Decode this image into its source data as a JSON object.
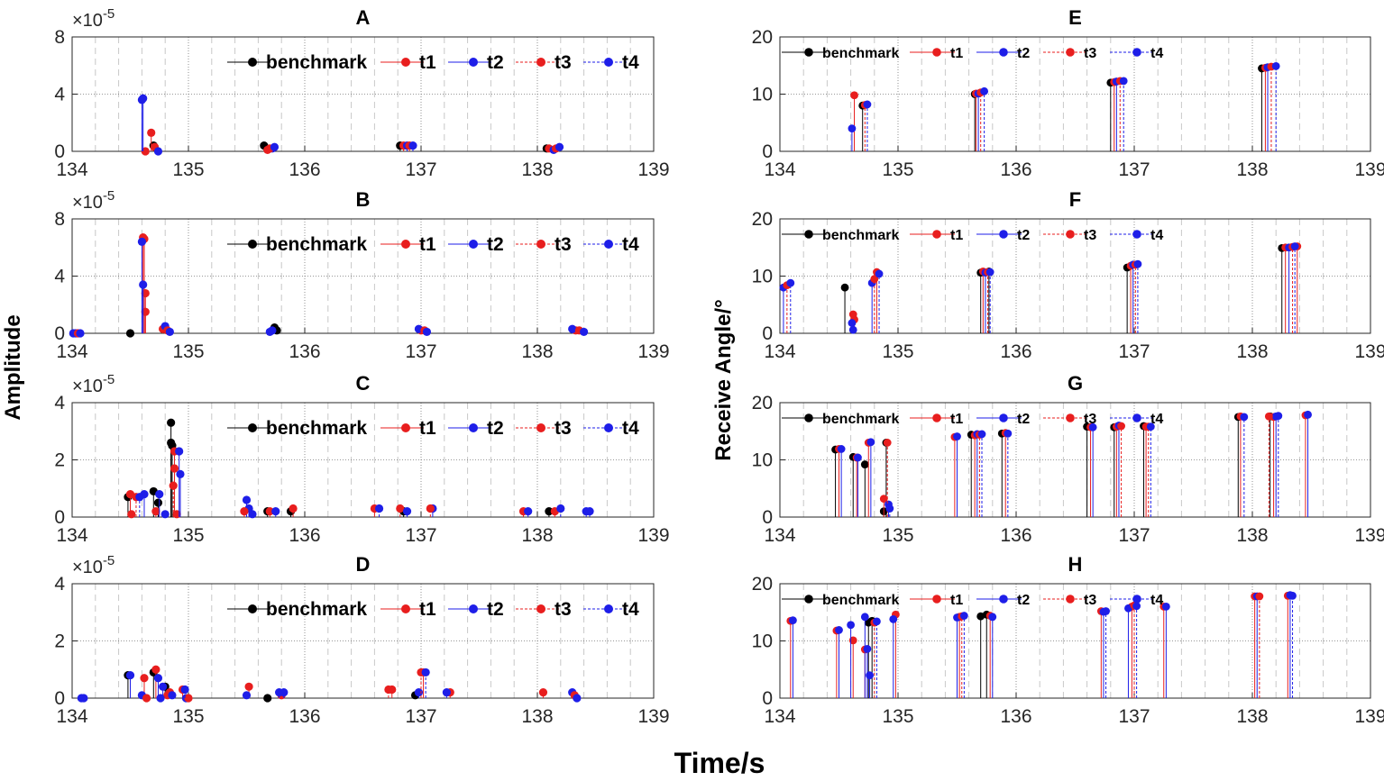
{
  "figure": {
    "ylabel_left": "Amplitude",
    "ylabel_right": "Receive Angle/°",
    "xlabel": "Time/s",
    "exponent_label": "×10",
    "exponent_power": "-5",
    "colors": {
      "benchmark": "#000000",
      "t1": "#e81e1e",
      "t2": "#1e1ee8",
      "t3": "#e81e1e",
      "t4": "#1e1ee8"
    }
  },
  "legend": [
    "benchmark",
    "t1",
    "t2",
    "t3",
    "t4"
  ],
  "chart_data": [
    {
      "id": "A",
      "title": "A",
      "type": "stem",
      "xlim": [
        134,
        139
      ],
      "ylim": [
        0,
        8
      ],
      "yticks": [
        0,
        4,
        8
      ],
      "scale_exponent": -5,
      "xticks": [
        134,
        135,
        136,
        137,
        138,
        139
      ],
      "series": [
        {
          "name": "benchmark",
          "x": [
            135.65,
            136.82,
            138.08,
            134.7
          ],
          "y": [
            0.4,
            0.4,
            0.2,
            0.4
          ]
        },
        {
          "name": "t1",
          "x": [
            134.63,
            134.68,
            134.71,
            135.68,
            136.85,
            138.1
          ],
          "y": [
            0.0,
            1.3,
            0.3,
            0.1,
            0.4,
            0.2
          ]
        },
        {
          "name": "t2",
          "x": [
            134.6,
            134.61,
            134.74,
            135.72,
            136.88,
            138.14
          ],
          "y": [
            3.6,
            3.7,
            0.0,
            0.2,
            0.4,
            0.1
          ]
        },
        {
          "name": "t3",
          "x": [
            135.7,
            136.9,
            138.16
          ],
          "y": [
            0.2,
            0.4,
            0.2
          ]
        },
        {
          "name": "t4",
          "x": [
            135.74,
            136.93,
            138.19
          ],
          "y": [
            0.3,
            0.4,
            0.3
          ]
        }
      ]
    },
    {
      "id": "B",
      "title": "B",
      "type": "stem",
      "xlim": [
        134,
        139
      ],
      "ylim": [
        0,
        8
      ],
      "yticks": [
        0,
        4,
        8
      ],
      "scale_exponent": -5,
      "xticks": [
        134,
        135,
        136,
        137,
        138,
        139
      ],
      "series": [
        {
          "name": "benchmark",
          "x": [
            134.5,
            135.74,
            135.76
          ],
          "y": [
            0.0,
            0.4,
            0.2
          ]
        },
        {
          "name": "t1",
          "x": [
            134.61,
            134.62,
            134.63,
            134.63,
            134.78,
            137.0,
            138.33
          ],
          "y": [
            6.7,
            6.6,
            2.8,
            1.5,
            0.3,
            0.2,
            0.2
          ]
        },
        {
          "name": "t2",
          "x": [
            134.01,
            134.03,
            134.6,
            134.61,
            134.8,
            135.72,
            136.98,
            138.3
          ],
          "y": [
            0.0,
            0.0,
            6.4,
            3.4,
            0.5,
            0.2,
            0.3,
            0.3
          ]
        },
        {
          "name": "t3",
          "x": [
            134.05,
            134.82,
            137.03,
            138.36
          ],
          "y": [
            0.0,
            0.2,
            0.2,
            0.2
          ]
        },
        {
          "name": "t4",
          "x": [
            134.07,
            134.84,
            135.7,
            137.05,
            138.4
          ],
          "y": [
            0.0,
            0.1,
            0.1,
            0.1,
            0.1
          ]
        }
      ]
    },
    {
      "id": "C",
      "title": "C",
      "type": "stem",
      "xlim": [
        134,
        139
      ],
      "ylim": [
        0,
        4
      ],
      "yticks": [
        0,
        2,
        4
      ],
      "scale_exponent": -5,
      "xticks": [
        134,
        135,
        136,
        137,
        138,
        139
      ],
      "series": [
        {
          "name": "benchmark",
          "x": [
            134.48,
            134.7,
            134.74,
            134.85,
            134.85,
            134.86,
            135.68,
            135.88,
            136.85,
            138.1
          ],
          "y": [
            0.7,
            0.9,
            0.5,
            3.3,
            2.6,
            2.5,
            0.2,
            0.2,
            0.2,
            0.2
          ]
        },
        {
          "name": "t1",
          "x": [
            134.5,
            134.51,
            134.72,
            134.88,
            134.88,
            134.9,
            135.7,
            135.9,
            136.6,
            138.15
          ],
          "y": [
            0.8,
            0.1,
            0.2,
            2.3,
            1.7,
            0.1,
            0.2,
            0.3,
            0.3,
            0.2
          ]
        },
        {
          "name": "t2",
          "x": [
            134.62,
            134.75,
            134.92,
            134.93,
            135.5,
            135.52,
            135.75,
            137.1,
            138.42
          ],
          "y": [
            0.8,
            0.8,
            2.3,
            1.5,
            0.6,
            0.3,
            0.2,
            0.3,
            0.2
          ]
        },
        {
          "name": "t3",
          "x": [
            134.55,
            134.87,
            135.48,
            136.82,
            137.08,
            137.88
          ],
          "y": [
            0.7,
            1.1,
            0.2,
            0.3,
            0.3,
            0.2
          ]
        },
        {
          "name": "t4",
          "x": [
            134.58,
            134.8,
            135.55,
            136.64,
            136.88,
            137.92,
            138.2,
            138.45
          ],
          "y": [
            0.7,
            0.1,
            0.1,
            0.3,
            0.2,
            0.2,
            0.3,
            0.2
          ]
        }
      ]
    },
    {
      "id": "D",
      "title": "D",
      "type": "stem",
      "xlim": [
        134,
        139
      ],
      "ylim": [
        0,
        4
      ],
      "yticks": [
        0,
        2,
        4
      ],
      "scale_exponent": -5,
      "xticks": [
        134,
        135,
        136,
        137,
        138,
        139
      ],
      "series": [
        {
          "name": "benchmark",
          "x": [
            134.48,
            134.7,
            134.8,
            135.68,
            136.95
          ],
          "y": [
            0.8,
            0.9,
            0.4,
            0.0,
            0.1
          ]
        },
        {
          "name": "t1",
          "x": [
            134.62,
            134.72,
            134.82,
            134.95,
            135.52,
            135.8,
            136.75,
            137.02,
            137.25,
            138.05
          ],
          "y": [
            0.7,
            1.0,
            0.1,
            0.3,
            0.4,
            0.1,
            0.3,
            0.9,
            0.2,
            0.2
          ]
        },
        {
          "name": "t2",
          "x": [
            134.08,
            134.5,
            134.6,
            134.74,
            134.78,
            134.98,
            135.5,
            135.78,
            136.98,
            137.22,
            138.3
          ],
          "y": [
            0.0,
            0.8,
            0.1,
            0.7,
            0.4,
            0.0,
            0.1,
            0.2,
            0.2,
            0.2,
            0.2
          ]
        },
        {
          "name": "t3",
          "x": [
            134.64,
            134.84,
            135.0,
            136.72,
            137.0,
            138.32
          ],
          "y": [
            0.0,
            0.2,
            0.0,
            0.3,
            0.9,
            0.1
          ]
        },
        {
          "name": "t4",
          "x": [
            134.1,
            134.76,
            134.86,
            134.97,
            135.82,
            137.04,
            138.34
          ],
          "y": [
            0.0,
            0.0,
            0.1,
            0.3,
            0.2,
            0.9,
            0.0
          ]
        }
      ]
    },
    {
      "id": "E",
      "title": "E",
      "type": "stem",
      "xlim": [
        134,
        139
      ],
      "ylim": [
        0,
        20
      ],
      "yticks": [
        0,
        10,
        20
      ],
      "xticks": [
        134,
        135,
        136,
        137,
        138,
        139
      ],
      "series": [
        {
          "name": "benchmark",
          "x": [
            134.7,
            135.65,
            136.8,
            138.08
          ],
          "y": [
            8.0,
            10.0,
            12.0,
            14.5
          ]
        },
        {
          "name": "t1",
          "x": [
            134.63,
            135.66,
            136.83,
            138.11
          ],
          "y": [
            9.8,
            10.1,
            12.1,
            14.6
          ]
        },
        {
          "name": "t2",
          "x": [
            134.61,
            135.68,
            136.85,
            138.13
          ],
          "y": [
            4.0,
            10.1,
            12.2,
            14.7
          ]
        },
        {
          "name": "t3",
          "x": [
            134.72,
            135.7,
            136.88,
            138.16
          ],
          "y": [
            8.1,
            10.3,
            12.3,
            14.8
          ]
        },
        {
          "name": "t4",
          "x": [
            134.74,
            135.73,
            136.91,
            138.2
          ],
          "y": [
            8.2,
            10.5,
            12.3,
            14.9
          ]
        }
      ]
    },
    {
      "id": "F",
      "title": "F",
      "type": "stem",
      "xlim": [
        134,
        139
      ],
      "ylim": [
        0,
        20
      ],
      "yticks": [
        0,
        10,
        20
      ],
      "xticks": [
        134,
        135,
        136,
        137,
        138,
        139
      ],
      "series": [
        {
          "name": "benchmark",
          "x": [
            134.55,
            135.7,
            135.77,
            136.94,
            138.25
          ],
          "y": [
            8.0,
            10.6,
            10.8,
            11.5,
            14.9
          ]
        },
        {
          "name": "t1",
          "x": [
            134.62,
            134.63,
            134.82,
            135.72,
            136.97,
            138.28,
            138.38
          ],
          "y": [
            3.3,
            2.4,
            10.7,
            10.8,
            11.8,
            15.0,
            15.2
          ]
        },
        {
          "name": "t2",
          "x": [
            134.03,
            134.61,
            134.62,
            134.78,
            135.74,
            136.99,
            138.31
          ],
          "y": [
            8.0,
            1.8,
            0.6,
            8.8,
            10.6,
            12.0,
            15.0
          ]
        },
        {
          "name": "t3",
          "x": [
            134.06,
            134.8,
            135.76,
            137.01,
            138.34
          ],
          "y": [
            8.4,
            9.5,
            10.7,
            12.0,
            15.1
          ]
        },
        {
          "name": "t4",
          "x": [
            134.09,
            134.84,
            135.78,
            137.03,
            138.36
          ],
          "y": [
            8.8,
            10.4,
            10.7,
            12.1,
            15.2
          ]
        }
      ]
    },
    {
      "id": "G",
      "title": "G",
      "type": "stem",
      "xlim": [
        134,
        139
      ],
      "ylim": [
        0,
        20
      ],
      "yticks": [
        0,
        10,
        20
      ],
      "xticks": [
        134,
        135,
        136,
        137,
        138,
        139
      ],
      "series": [
        {
          "name": "benchmark",
          "x": [
            134.47,
            134.62,
            134.72,
            134.88,
            134.9,
            135.62,
            135.88,
            136.6,
            136.83,
            137.08,
            137.88,
            138.15
          ],
          "y": [
            11.8,
            10.5,
            9.2,
            1.0,
            13.0,
            14.4,
            14.6,
            15.8,
            15.7,
            15.9,
            17.5,
            17.6
          ]
        },
        {
          "name": "t1",
          "x": [
            134.5,
            134.65,
            134.75,
            134.88,
            135.48,
            135.65,
            135.91,
            136.63,
            136.85,
            137.1,
            137.9,
            138.18,
            138.45
          ],
          "y": [
            11.9,
            10.4,
            13.0,
            3.2,
            14.0,
            14.3,
            14.7,
            15.7,
            15.8,
            15.8,
            17.6,
            17.5,
            17.8
          ]
        },
        {
          "name": "t2",
          "x": [
            134.52,
            134.66,
            134.77,
            134.92,
            135.5,
            135.67,
            136.65,
            136.87,
            138.2,
            138.47
          ],
          "y": [
            11.9,
            10.4,
            13.1,
            2.2,
            14.1,
            14.5,
            15.7,
            16.0,
            17.6,
            17.9
          ]
        },
        {
          "name": "t3",
          "x": [
            134.91,
            135.69,
            136.89,
            137.12,
            138.14
          ],
          "y": [
            13.0,
            14.4,
            15.9,
            15.8,
            17.6
          ]
        },
        {
          "name": "t4",
          "x": [
            134.93,
            135.71,
            135.93,
            137.14,
            137.93,
            138.22
          ],
          "y": [
            1.5,
            14.5,
            14.6,
            15.8,
            17.5,
            17.7
          ]
        }
      ]
    },
    {
      "id": "H",
      "title": "H",
      "type": "stem",
      "xlim": [
        134,
        139
      ],
      "ylim": [
        0,
        20
      ],
      "yticks": [
        0,
        10,
        20
      ],
      "xticks": [
        134,
        135,
        136,
        137,
        138,
        139
      ],
      "series": [
        {
          "name": "benchmark",
          "x": [
            134.75,
            134.78,
            135.7,
            135.75
          ],
          "y": [
            13.2,
            13.5,
            14.3,
            14.6
          ]
        },
        {
          "name": "t1",
          "x": [
            134.09,
            134.48,
            134.62,
            134.72,
            134.98,
            135.52,
            135.78,
            136.72,
            136.98,
            137.25,
            138.02,
            138.3
          ],
          "y": [
            13.5,
            11.8,
            10.1,
            8.5,
            14.6,
            14.2,
            14.4,
            15.2,
            16.0,
            16.0,
            17.8,
            17.9
          ]
        },
        {
          "name": "t2",
          "x": [
            134.11,
            134.5,
            134.6,
            134.72,
            134.74,
            134.76,
            134.96,
            135.5,
            135.8,
            136.74,
            136.95,
            137.27,
            138.04,
            138.32
          ],
          "y": [
            13.6,
            11.9,
            12.8,
            14.2,
            8.6,
            4.0,
            13.8,
            14.1,
            14.2,
            15.1,
            15.7,
            16.0,
            17.8,
            18.0
          ]
        },
        {
          "name": "t3",
          "x": [
            134.8,
            135.54,
            137.0,
            138.06
          ],
          "y": [
            13.2,
            14.3,
            16.2,
            17.8
          ]
        },
        {
          "name": "t4",
          "x": [
            134.82,
            135.56,
            136.76,
            137.02,
            138.34
          ],
          "y": [
            13.4,
            14.4,
            15.2,
            16.1,
            17.9
          ]
        }
      ]
    }
  ]
}
